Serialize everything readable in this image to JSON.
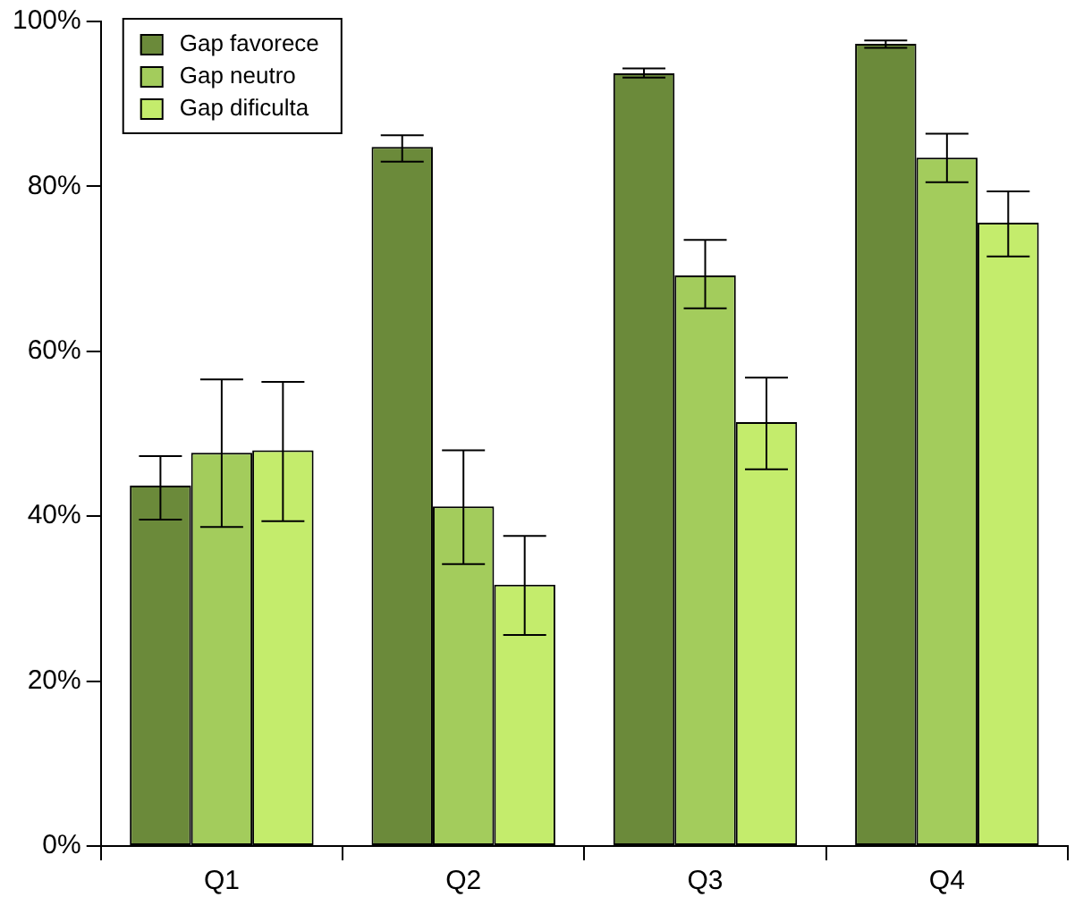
{
  "chart_data": {
    "type": "bar",
    "categories": [
      "Q1",
      "Q2",
      "Q3",
      "Q4"
    ],
    "series": [
      {
        "name": "Gap favorece",
        "color": "#6b8a3a",
        "values": [
          43.7,
          84.8,
          93.7,
          97.3
        ],
        "errors": [
          [
            39.6,
            47.3
          ],
          [
            83.0,
            86.2
          ],
          [
            93.2,
            94.3
          ],
          [
            96.8,
            97.7
          ]
        ]
      },
      {
        "name": "Gap neutro",
        "color": "#a3cc5c",
        "values": [
          47.7,
          41.2,
          69.2,
          83.5
        ],
        "errors": [
          [
            38.7,
            56.6
          ],
          [
            34.2,
            48.0
          ],
          [
            65.2,
            73.5
          ],
          [
            80.5,
            86.4
          ]
        ]
      },
      {
        "name": "Gap dificulta",
        "color": "#c4ec6c",
        "values": [
          48.0,
          31.7,
          51.4,
          75.6
        ],
        "errors": [
          [
            39.4,
            56.3
          ],
          [
            25.6,
            37.6
          ],
          [
            45.7,
            56.8
          ],
          [
            71.5,
            79.4
          ]
        ]
      }
    ],
    "ylim": [
      0,
      100
    ],
    "yticks": [
      {
        "value": 0,
        "label": "0%"
      },
      {
        "value": 20,
        "label": "20%"
      },
      {
        "value": 40,
        "label": "40%"
      },
      {
        "value": 60,
        "label": "60%"
      },
      {
        "value": 80,
        "label": "80%"
      },
      {
        "value": 100,
        "label": "100%"
      }
    ],
    "grid": false,
    "legend": "top left"
  }
}
